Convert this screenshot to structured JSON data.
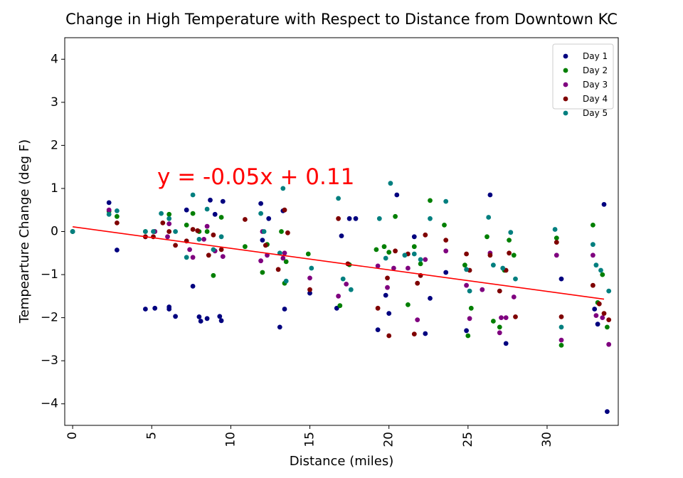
{
  "chart_data": {
    "type": "scatter",
    "title": "Change in High Temperature with Respect to Distance from Downtown KC",
    "xlabel": "Distance (miles)",
    "ylabel": "Tempearture Change (deg F)",
    "xlim": [
      -0.5,
      34.5
    ],
    "ylim": [
      -4.5,
      4.5
    ],
    "xticks": [
      0,
      5,
      10,
      15,
      20,
      25,
      30
    ],
    "yticks": [
      4,
      3,
      2,
      1,
      0,
      -1,
      -2,
      -3,
      -4
    ],
    "ytick_labels": [
      "4",
      "3",
      "2",
      "1",
      "0",
      "−1",
      "−2",
      "−3",
      "−4"
    ],
    "grid": false,
    "legend_position": "top-right",
    "trendline": {
      "slope": -0.05,
      "intercept": 0.11,
      "x_range": [
        0,
        33.6
      ],
      "color": "#ff0000",
      "label": "y = -0.05x + 0.11"
    },
    "series": [
      {
        "name": "Day 1",
        "color": "#00007f",
        "x": [
          0,
          2.3,
          2.8,
          4.6,
          5.2,
          6.1,
          6.1,
          6.5,
          7.2,
          7.6,
          8.0,
          8.1,
          8.5,
          8.7,
          9.0,
          9.3,
          9.4,
          9.5,
          11.9,
          12.0,
          12.4,
          13.1,
          13.3,
          13.4,
          15.0,
          16.7,
          17.0,
          17.5,
          17.9,
          19.3,
          19.8,
          20.0,
          20.5,
          21.6,
          22.3,
          22.6,
          23.6,
          24.9,
          26.4,
          27.4,
          30.9,
          33.0,
          33.2,
          33.6,
          33.8
        ],
        "y": [
          0.0,
          0.67,
          -0.43,
          -1.8,
          -1.78,
          -1.75,
          -1.8,
          -1.97,
          0.5,
          -1.27,
          -1.98,
          -2.08,
          -2.02,
          0.73,
          0.4,
          -1.97,
          -2.07,
          0.7,
          0.65,
          -0.2,
          0.3,
          -2.22,
          0.48,
          -1.8,
          -1.43,
          -1.78,
          -0.1,
          0.3,
          0.3,
          -2.28,
          -1.48,
          -1.9,
          0.85,
          -0.12,
          -2.37,
          -1.55,
          -0.95,
          -2.3,
          0.85,
          -2.6,
          -1.1,
          -1.8,
          -2.15,
          0.63,
          -4.18
        ]
      },
      {
        "name": "Day 2",
        "color": "#007f00",
        "x": [
          0,
          2.3,
          2.8,
          4.6,
          5.2,
          6.1,
          7.2,
          7.6,
          8.0,
          8.5,
          8.9,
          9.4,
          10.9,
          12.0,
          12.3,
          13.2,
          13.4,
          13.5,
          14.9,
          16.9,
          17.5,
          19.2,
          19.7,
          20.0,
          20.4,
          21.2,
          21.6,
          22.0,
          22.6,
          23.5,
          24.8,
          25.0,
          25.2,
          26.2,
          26.6,
          27.0,
          27.3,
          27.6,
          27.9,
          30.6,
          30.9,
          32.9,
          33.2,
          33.5,
          33.8
        ],
        "y": [
          0.0,
          0.47,
          0.35,
          0.0,
          0.0,
          0.4,
          0.15,
          0.42,
          0.0,
          0.0,
          -1.02,
          0.33,
          -0.35,
          -0.95,
          -0.3,
          0.0,
          -1.2,
          -0.7,
          -0.52,
          -1.72,
          -0.77,
          -0.42,
          -0.35,
          -0.48,
          0.35,
          -1.7,
          -0.35,
          -0.75,
          0.72,
          0.15,
          -0.78,
          -2.42,
          -1.78,
          -0.12,
          -2.08,
          -2.22,
          -0.9,
          -0.2,
          -0.55,
          -0.15,
          -2.64,
          0.15,
          -1.65,
          -1.0,
          -2.22
        ]
      },
      {
        "name": "Day 3",
        "color": "#7f007f",
        "x": [
          2.3,
          4.6,
          5.2,
          6.0,
          6.1,
          7.4,
          7.6,
          8.3,
          8.5,
          9.0,
          9.5,
          11.9,
          12.0,
          12.3,
          13.3,
          13.4,
          15.0,
          16.8,
          17.3,
          19.3,
          19.9,
          20.3,
          21.2,
          21.8,
          22.3,
          23.6,
          24.9,
          25.1,
          25.9,
          26.4,
          27.0,
          27.1,
          27.4,
          27.9,
          30.6,
          30.9,
          32.9,
          33.1,
          33.5,
          33.9
        ],
        "y": [
          0.5,
          -0.12,
          0.0,
          -0.12,
          0.18,
          -0.42,
          -0.6,
          -0.18,
          0.12,
          -0.45,
          -0.58,
          -0.68,
          0.0,
          -0.55,
          -0.62,
          -0.5,
          -1.08,
          -1.5,
          -1.22,
          -0.8,
          -1.3,
          -0.85,
          -0.85,
          -2.05,
          -0.65,
          -0.45,
          -1.25,
          -2.02,
          -1.35,
          -0.5,
          -2.35,
          -2.0,
          -2.0,
          -1.52,
          -0.55,
          -2.52,
          -0.55,
          -1.95,
          -2.0,
          -2.62
        ]
      },
      {
        "name": "Day 4",
        "color": "#7f0000",
        "x": [
          2.8,
          4.6,
          5.1,
          5.7,
          6.1,
          6.5,
          7.2,
          7.6,
          7.9,
          8.6,
          8.9,
          9.4,
          10.9,
          12.2,
          13.0,
          13.4,
          13.6,
          15.0,
          16.8,
          17.4,
          19.3,
          19.9,
          20.0,
          20.4,
          21.2,
          21.6,
          21.8,
          22.0,
          22.3,
          23.6,
          24.9,
          25.1,
          26.4,
          27.0,
          27.4,
          27.6,
          28.0,
          30.6,
          30.9,
          32.9,
          33.3,
          33.6,
          33.9
        ],
        "y": [
          0.2,
          -0.12,
          -0.12,
          0.2,
          0.0,
          -0.32,
          -0.22,
          0.05,
          0.02,
          -0.55,
          -0.08,
          -0.42,
          0.28,
          -0.32,
          -0.88,
          0.5,
          -0.03,
          -1.35,
          0.3,
          -0.75,
          -1.78,
          -1.08,
          -2.42,
          -0.45,
          -0.52,
          -2.38,
          -1.2,
          -1.02,
          -0.08,
          -0.2,
          -0.52,
          -0.9,
          -0.55,
          -1.38,
          -0.9,
          -0.5,
          -1.98,
          -0.25,
          -1.98,
          -1.25,
          -1.68,
          -1.9,
          -2.05
        ]
      },
      {
        "name": "Day 5",
        "color": "#007f7f",
        "x": [
          0,
          2.3,
          2.8,
          4.6,
          5.1,
          5.6,
          6.1,
          6.5,
          7.2,
          7.6,
          8.0,
          8.5,
          8.9,
          9.4,
          11.9,
          12.1,
          13.1,
          13.3,
          13.5,
          15.1,
          16.8,
          17.1,
          17.6,
          19.4,
          19.8,
          20.1,
          21.0,
          21.6,
          22.0,
          22.6,
          23.6,
          24.9,
          25.1,
          26.3,
          26.6,
          27.2,
          27.7,
          28.0,
          30.5,
          30.9,
          32.9,
          33.1,
          33.4,
          33.9
        ],
        "y": [
          0.0,
          0.4,
          0.48,
          0.0,
          0.0,
          0.42,
          0.3,
          0.0,
          -0.6,
          0.85,
          -0.18,
          0.52,
          -0.42,
          -0.12,
          0.42,
          0.0,
          -0.5,
          1.0,
          -1.15,
          -0.85,
          0.77,
          -1.1,
          -1.35,
          0.3,
          -0.62,
          1.12,
          -0.55,
          -0.52,
          -0.65,
          0.3,
          0.7,
          -0.88,
          -1.38,
          0.33,
          -0.78,
          -0.85,
          -0.02,
          -1.1,
          0.05,
          -2.22,
          -0.3,
          -0.78,
          -0.9,
          -1.38
        ]
      }
    ]
  }
}
